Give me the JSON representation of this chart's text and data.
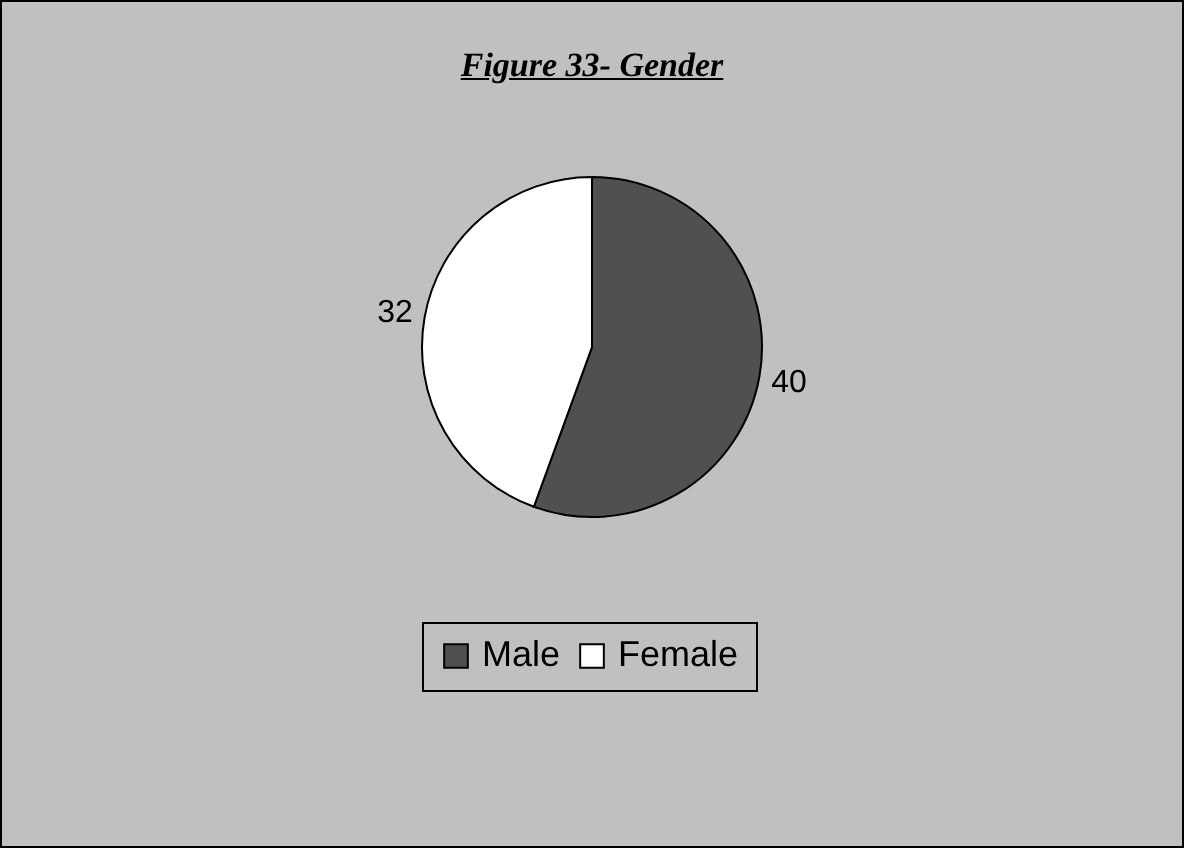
{
  "chart_data": {
    "type": "pie",
    "title": "Figure 33- Gender",
    "categories": [
      "Male",
      "Female"
    ],
    "values": [
      40,
      32
    ],
    "colors": [
      "#505050",
      "#ffffff"
    ],
    "data_labels": true,
    "legend": "bottom"
  }
}
